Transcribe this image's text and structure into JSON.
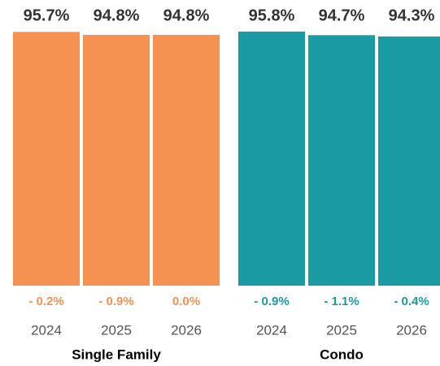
{
  "chart_data": {
    "type": "grouped-bar",
    "categories": [
      "2024",
      "2025",
      "2026"
    ],
    "ylim": [
      18,
      100
    ],
    "series": [
      {
        "name": "Single Family",
        "color": "#f59251",
        "values": [
          95.7,
          94.8,
          94.8
        ],
        "value_labels": [
          "95.7%",
          "94.8%",
          "94.8%"
        ],
        "change_labels": [
          "- 0.2%",
          "- 0.9%",
          "0.0%"
        ]
      },
      {
        "name": "Condo",
        "color": "#1a9ba4",
        "values": [
          95.8,
          94.7,
          94.3
        ],
        "value_labels": [
          "95.8%",
          "94.7%",
          "94.3%"
        ],
        "change_labels": [
          "- 0.9%",
          "- 1.1%",
          "- 0.4%"
        ]
      }
    ]
  }
}
